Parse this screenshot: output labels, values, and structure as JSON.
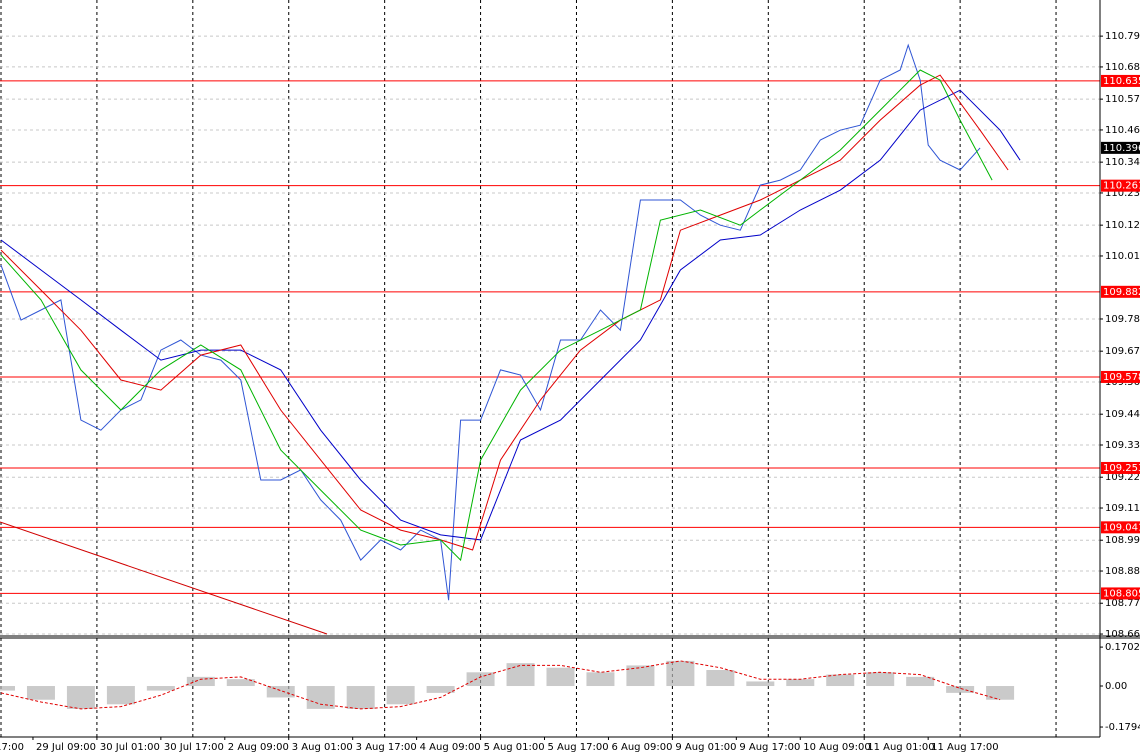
{
  "chart_data": [
    {
      "type": "line",
      "xlim": [
        0,
        275
      ],
      "ylim": [
        108.653,
        110.924
      ],
      "xticks": [
        {
          "value": -8,
          "label": "17:00"
        },
        {
          "value": 8,
          "label": "29 Jul 09:00"
        },
        {
          "value": 24,
          "label": "30 Jul 01:00"
        },
        {
          "value": 40,
          "label": "30 Jul 17:00"
        },
        {
          "value": 56,
          "label": "2 Aug 09:00"
        },
        {
          "value": 72,
          "label": "3 Aug 01:00"
        },
        {
          "value": 88,
          "label": "3 Aug 17:00"
        },
        {
          "value": 104,
          "label": "4 Aug 09:00"
        },
        {
          "value": 120,
          "label": "5 Aug 01:00"
        },
        {
          "value": 136,
          "label": "5 Aug 17:00"
        },
        {
          "value": 152,
          "label": "6 Aug 09:00"
        },
        {
          "value": 168,
          "label": "9 Aug 01:00"
        },
        {
          "value": 184,
          "label": "9 Aug 17:00"
        },
        {
          "value": 200,
          "label": "10 Aug 09:00"
        },
        {
          "value": 216,
          "label": "11 Aug 01:00"
        },
        {
          "value": 232,
          "label": "11 Aug 17:00"
        }
      ],
      "xgrid": [
        0,
        24,
        48,
        72,
        96,
        120,
        144,
        168,
        192,
        216,
        240,
        264
      ],
      "yticks": [
        110.795,
        110.685,
        {
          "value": 110.57,
          "label": "110.570"
        },
        {
          "value": 110.46,
          "label": "110.460"
        },
        110.345,
        110.235,
        {
          "value": 110.12,
          "label": "110.120"
        },
        {
          "value": 110.01,
          "label": "110.010"
        },
        109.785,
        {
          "value": 109.67,
          "label": "109.670"
        },
        {
          "value": 109.56,
          "label": "109.560"
        },
        109.445,
        109.335,
        {
          "value": 109.22,
          "label": "109.220"
        },
        {
          "value": 109.11,
          "label": "109.110"
        },
        108.995,
        108.885,
        {
          "value": 108.77,
          "label": "108.770"
        },
        {
          "value": 108.66,
          "label": "108.660"
        }
      ],
      "grid": true,
      "series": [
        {
          "color": "#2f55d4",
          "x": [
            0,
            5,
            10,
            15,
            20,
            25,
            30,
            35,
            40,
            45,
            50,
            55,
            60,
            65,
            70,
            75,
            80,
            85,
            90,
            95,
            100,
            105,
            110,
            112,
            115,
            120,
            125,
            130,
            135,
            140,
            145,
            150,
            155,
            160,
            165,
            170,
            175,
            180,
            185,
            190,
            195,
            200,
            205,
            210,
            215,
            220,
            225,
            227,
            230,
            232,
            235,
            240,
            245
          ],
          "values": [
            109.977,
            109.781,
            109.817,
            109.853,
            109.424,
            109.388,
            109.46,
            109.496,
            109.674,
            109.71,
            109.656,
            109.638,
            109.567,
            109.21,
            109.21,
            109.246,
            109.139,
            109.067,
            108.924,
            108.996,
            108.96,
            109.031,
            108.996,
            108.781,
            109.424,
            109.424,
            109.603,
            109.585,
            109.46,
            109.71,
            109.71,
            109.817,
            109.745,
            110.21,
            110.21,
            110.21,
            110.156,
            110.12,
            110.102,
            110.263,
            110.281,
            110.317,
            110.424,
            110.459,
            110.477,
            110.638,
            110.674,
            110.763,
            110.638,
            110.406,
            110.352,
            110.317,
            110.396
          ]
        },
        {
          "color": "#0000c8",
          "x": [
            0,
            10,
            20,
            30,
            40,
            50,
            60,
            70,
            80,
            90,
            100,
            110,
            120,
            130,
            140,
            150,
            160,
            170,
            180,
            190,
            200,
            210,
            220,
            230,
            240,
            250,
            255
          ],
          "values": [
            110.067,
            109.96,
            109.853,
            109.745,
            109.638,
            109.674,
            109.674,
            109.603,
            109.388,
            109.21,
            109.067,
            109.014,
            108.996,
            109.353,
            109.424,
            109.567,
            109.71,
            109.96,
            110.067,
            110.085,
            110.174,
            110.245,
            110.352,
            110.531,
            110.602,
            110.459,
            110.352
          ]
        },
        {
          "color": "#e00000",
          "x": [
            0,
            10,
            20,
            30,
            40,
            50,
            60,
            70,
            80,
            90,
            100,
            110,
            118,
            125,
            135,
            145,
            155,
            165,
            170,
            180,
            190,
            200,
            210,
            220,
            230,
            235,
            245,
            252
          ],
          "values": [
            110.031,
            109.888,
            109.745,
            109.567,
            109.531,
            109.656,
            109.692,
            109.46,
            109.281,
            109.103,
            109.031,
            108.996,
            108.96,
            109.281,
            109.496,
            109.674,
            109.781,
            109.853,
            110.102,
            110.156,
            110.21,
            110.281,
            110.352,
            110.495,
            110.62,
            110.656,
            110.459,
            110.317
          ]
        },
        {
          "color": "#00b400",
          "x": [
            0,
            10,
            20,
            30,
            40,
            50,
            60,
            70,
            80,
            90,
            100,
            110,
            115,
            120,
            130,
            140,
            150,
            160,
            165,
            175,
            185,
            190,
            200,
            210,
            220,
            230,
            235,
            240,
            248
          ],
          "values": [
            110.013,
            109.853,
            109.603,
            109.46,
            109.603,
            109.692,
            109.603,
            109.317,
            109.174,
            109.031,
            108.978,
            108.996,
            108.924,
            109.281,
            109.531,
            109.674,
            109.745,
            109.817,
            110.138,
            110.174,
            110.12,
            110.174,
            110.281,
            110.388,
            110.531,
            110.674,
            110.638,
            110.495,
            110.281
          ]
        }
      ],
      "levels": {
        "color": "#ff0000",
        "values": [
          110.635,
          110.261,
          109.882,
          109.578,
          109.253,
          109.041,
          108.805
        ]
      },
      "last_value": 110.396
    },
    {
      "type": "oscillator",
      "ylim": [
        -0.223,
        0.21
      ],
      "yticks": [
        0.1702,
        {
          "value": 0,
          "label": "0.00"
        },
        -0.1794
      ],
      "x": [
        0,
        10,
        20,
        30,
        40,
        50,
        60,
        70,
        80,
        90,
        100,
        110,
        120,
        130,
        140,
        150,
        160,
        170,
        180,
        190,
        200,
        210,
        220,
        230,
        240,
        250
      ],
      "series": [
        {
          "color": "#b4b4b4",
          "style": "histogram",
          "values": [
            -0.02,
            -0.06,
            -0.1,
            -0.08,
            -0.02,
            0.04,
            0.03,
            -0.05,
            -0.1,
            -0.1,
            -0.08,
            -0.03,
            0.06,
            0.1,
            0.08,
            0.06,
            0.09,
            0.11,
            0.07,
            0.02,
            0.03,
            0.05,
            0.06,
            0.04,
            -0.03,
            -0.06
          ]
        },
        {
          "color": "#e00000",
          "style": "dashed",
          "values": [
            -0.03,
            -0.07,
            -0.1,
            -0.09,
            -0.04,
            0.03,
            0.04,
            -0.02,
            -0.08,
            -0.1,
            -0.09,
            -0.05,
            0.04,
            0.09,
            0.09,
            0.06,
            0.08,
            0.11,
            0.08,
            0.03,
            0.03,
            0.05,
            0.06,
            0.05,
            -0.01,
            -0.06
          ]
        }
      ]
    }
  ]
}
